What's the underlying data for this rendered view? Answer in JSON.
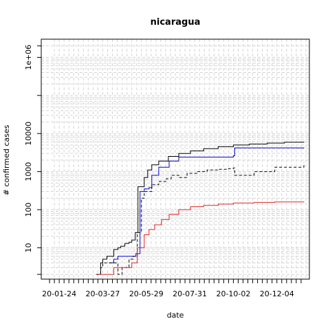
{
  "chart_data": {
    "type": "line",
    "title": "nicaragua",
    "xlabel": "date",
    "ylabel": "# confirmed cases",
    "y_scale": "log",
    "grid": true,
    "x_range": [
      "2019-12-29",
      "2021-01-20"
    ],
    "y_range": [
      1.5,
      3000000
    ],
    "x_ticks": [
      "20-01-24",
      "20-03-27",
      "20-05-29",
      "20-07-31",
      "20-10-02",
      "20-12-04"
    ],
    "y_ticks": [
      {
        "value": 10,
        "label": "10"
      },
      {
        "value": 100,
        "label": "100"
      },
      {
        "value": 1000,
        "label": "1000"
      },
      {
        "value": 10000,
        "label": "10000"
      },
      {
        "value": 1000000,
        "label": "1e+06"
      }
    ],
    "series": [
      {
        "color": "#000000",
        "dash": "solid",
        "step": true,
        "x": [
          "2020-03-18",
          "2020-03-20",
          "2020-03-24",
          "2020-03-27",
          "2020-04-02",
          "2020-04-05",
          "2020-04-12",
          "2020-04-18",
          "2020-04-22",
          "2020-04-28",
          "2020-05-04",
          "2020-05-08",
          "2020-05-13",
          "2020-05-17",
          "2020-05-22",
          "2020-05-26",
          "2020-05-31",
          "2020-06-06",
          "2020-06-16",
          "2020-06-30",
          "2020-07-15",
          "2020-08-01",
          "2020-08-20",
          "2020-09-10",
          "2020-10-02",
          "2020-10-25",
          "2020-11-20",
          "2020-12-15",
          "2021-01-12"
        ],
        "y": [
          2,
          2,
          4,
          5,
          6,
          6,
          9,
          10,
          11,
          13,
          14,
          16,
          25,
          400,
          400,
          700,
          1100,
          1500,
          1900,
          2500,
          3000,
          3500,
          4000,
          4500,
          5000,
          5300,
          5600,
          5900,
          6100
        ]
      },
      {
        "color": "#0000cc",
        "dash": "solid",
        "step": true,
        "x": [
          "2020-04-05",
          "2020-04-12",
          "2020-04-18",
          "2020-05-08",
          "2020-05-14",
          "2020-05-20",
          "2020-05-26",
          "2020-06-02",
          "2020-06-06",
          "2020-06-16",
          "2020-07-01",
          "2020-07-15",
          "2020-10-02",
          "2020-10-04",
          "2021-01-12"
        ],
        "y": [
          4,
          5,
          6,
          6,
          7,
          300,
          350,
          380,
          800,
          1300,
          1900,
          2400,
          2600,
          4200,
          4300
        ]
      },
      {
        "color": "#000000",
        "dash": "dashed",
        "step": true,
        "x": [
          "2020-03-18",
          "2020-03-24",
          "2020-03-27",
          "2020-04-02",
          "2020-04-09",
          "2020-04-18",
          "2020-04-24",
          "2020-05-04",
          "2020-05-10",
          "2020-05-16",
          "2020-05-22",
          "2020-05-26",
          "2020-06-06",
          "2020-06-16",
          "2020-06-27",
          "2020-07-04",
          "2020-07-15",
          "2020-07-27",
          "2020-08-10",
          "2020-08-25",
          "2020-09-10",
          "2020-09-25",
          "2020-10-02",
          "2020-10-04",
          "2020-11-01",
          "2020-12-01",
          "2021-01-12"
        ],
        "y": [
          2,
          3,
          4,
          4,
          4,
          2,
          3,
          5,
          6,
          25,
          200,
          300,
          450,
          550,
          650,
          800,
          700,
          900,
          1000,
          1100,
          1150,
          1200,
          1250,
          800,
          1000,
          1300,
          1700
        ]
      },
      {
        "color": "#dd2222",
        "dash": "solid",
        "step": true,
        "x": [
          "2020-03-20",
          "2020-04-05",
          "2020-04-12",
          "2020-04-18",
          "2020-05-08",
          "2020-05-16",
          "2020-05-26",
          "2020-06-02",
          "2020-06-10",
          "2020-06-20",
          "2020-07-01",
          "2020-07-15",
          "2020-08-01",
          "2020-08-20",
          "2020-09-10",
          "2020-10-02",
          "2020-11-01",
          "2020-12-01",
          "2021-01-12"
        ],
        "y": [
          2,
          2,
          3,
          3,
          4,
          10,
          22,
          30,
          40,
          55,
          75,
          100,
          120,
          130,
          140,
          150,
          155,
          160,
          163
        ]
      }
    ]
  }
}
